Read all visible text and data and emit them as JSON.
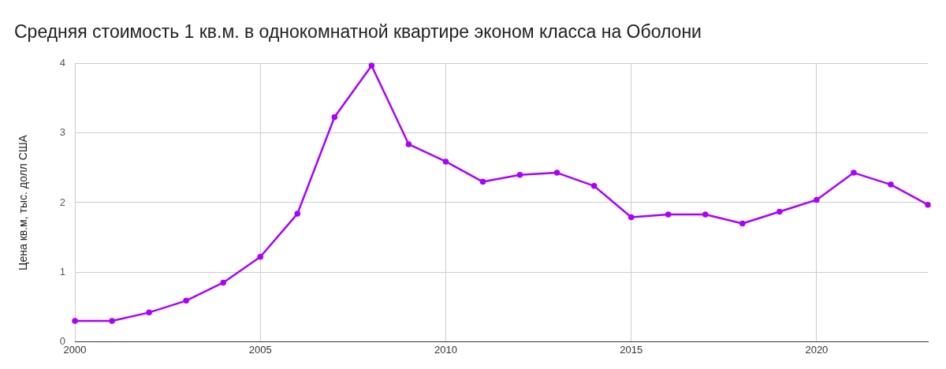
{
  "chart_data": {
    "type": "line",
    "title": "Средняя стоимость 1 кв.м. в однокомнатной квартире эконом класса на Оболони",
    "ylabel": "Цена кв.м, тыс. долл США",
    "x": [
      2000,
      2001,
      2002,
      2003,
      2004,
      2005,
      2006,
      2007,
      2008,
      2009,
      2010,
      2011,
      2012,
      2013,
      2014,
      2015,
      2016,
      2017,
      2018,
      2019,
      2020,
      2021,
      2022,
      2023
    ],
    "series": [
      {
        "color": "#aa00ff",
        "values": [
          0.3,
          0.3,
          0.42,
          0.59,
          0.85,
          1.22,
          1.84,
          3.23,
          3.97,
          2.84,
          2.59,
          2.3,
          2.4,
          2.43,
          2.24,
          1.79,
          1.83,
          1.83,
          1.7,
          1.87,
          2.04,
          2.43,
          2.26,
          1.97
        ]
      }
    ],
    "xlim": [
      2000,
      2023
    ],
    "xticks": [
      2000,
      2005,
      2010,
      2015,
      2020
    ],
    "ylim": [
      0,
      4
    ],
    "yticks": [
      0,
      1,
      2,
      3,
      4
    ],
    "grid": true,
    "marker": "circle",
    "line_style": "solid"
  }
}
